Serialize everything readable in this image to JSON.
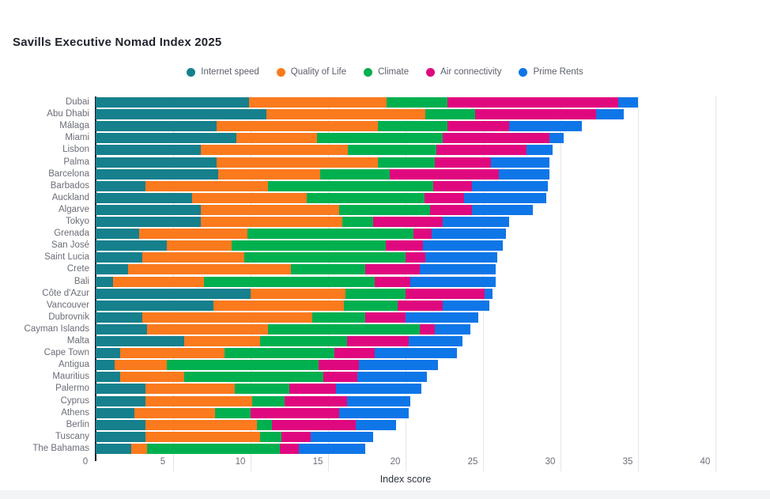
{
  "title": "Savills Executive Nomad Index 2025",
  "chart_data": {
    "type": "bar",
    "orientation": "horizontal-stacked",
    "title": "Savills Executive Nomad Index 2025",
    "xlabel": "Index score",
    "xlim": [
      0,
      40
    ],
    "xticks": [
      0,
      5,
      10,
      15,
      20,
      25,
      30,
      35,
      40
    ],
    "grid": true,
    "legend_position": "top",
    "categories": [
      "Dubai",
      "Abu Dhabi",
      "Málaga",
      "Miami",
      "Lisbon",
      "Palma",
      "Barcelona",
      "Barbados",
      "Auckland",
      "Algarve",
      "Tokyo",
      "Grenada",
      "San José",
      "Saint Lucia",
      "Crete",
      "Bali",
      "Côte d'Azur",
      "Vancouver",
      "Dubrovnik",
      "Cayman Islands",
      "Malta",
      "Cape Town",
      "Antigua",
      "Mauritius",
      "Palermo",
      "Cyprus",
      "Athens",
      "Berlin",
      "Tuscany",
      "The Bahamas"
    ],
    "series": [
      {
        "name": "Internet speed",
        "color": "#16808d",
        "values": [
          9.9,
          11.0,
          7.8,
          9.1,
          6.8,
          7.8,
          7.9,
          3.2,
          6.2,
          6.8,
          6.8,
          2.8,
          4.6,
          3.0,
          2.1,
          1.1,
          10.0,
          7.6,
          3.0,
          3.3,
          5.7,
          1.6,
          1.2,
          1.6,
          3.2,
          3.2,
          2.5,
          3.2,
          3.2,
          2.3
        ]
      },
      {
        "name": "Quality of Life",
        "color": "#fa7a1d",
        "values": [
          8.9,
          10.3,
          10.4,
          5.2,
          9.5,
          10.4,
          6.6,
          7.9,
          7.4,
          8.9,
          9.1,
          7.0,
          4.2,
          6.6,
          10.5,
          5.9,
          6.1,
          8.4,
          11.0,
          7.8,
          4.9,
          6.7,
          3.4,
          4.1,
          5.8,
          6.9,
          5.2,
          7.2,
          7.4,
          1.0
        ]
      },
      {
        "name": "Climate",
        "color": "#00b04f",
        "values": [
          3.9,
          3.2,
          4.5,
          8.1,
          5.7,
          3.7,
          4.5,
          10.7,
          7.6,
          5.9,
          2.0,
          10.7,
          9.9,
          10.4,
          4.8,
          11.0,
          3.9,
          3.5,
          3.4,
          9.8,
          5.6,
          7.1,
          9.8,
          9.0,
          3.5,
          2.1,
          2.3,
          1.0,
          1.4,
          8.6
        ]
      },
      {
        "name": "Air connectivity",
        "color": "#e0087f",
        "values": [
          11.0,
          7.8,
          4.0,
          6.9,
          5.8,
          3.6,
          7.0,
          2.5,
          2.6,
          2.7,
          4.5,
          1.2,
          2.4,
          1.3,
          3.5,
          2.3,
          5.1,
          2.9,
          2.6,
          1.0,
          4.0,
          2.6,
          2.6,
          2.2,
          3.0,
          4.0,
          5.7,
          5.4,
          1.9,
          1.2
        ]
      },
      {
        "name": "Prime Rents",
        "color": "#0f76e8",
        "values": [
          1.3,
          1.8,
          4.7,
          0.9,
          1.7,
          3.8,
          3.3,
          4.9,
          5.3,
          3.9,
          4.3,
          4.8,
          5.2,
          4.6,
          4.9,
          5.5,
          0.5,
          3.0,
          4.7,
          2.3,
          3.5,
          5.3,
          5.1,
          4.5,
          5.5,
          4.1,
          4.5,
          2.6,
          4.0,
          4.3
        ]
      }
    ]
  }
}
